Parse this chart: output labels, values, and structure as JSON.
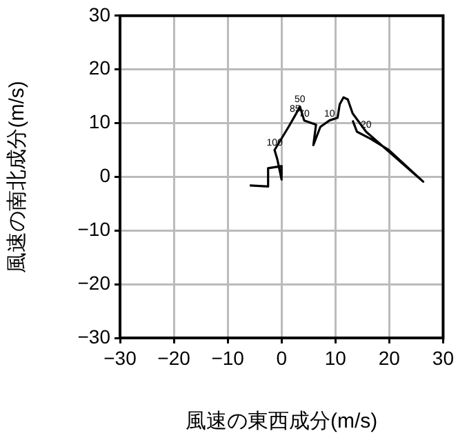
{
  "chart_data": {
    "type": "line",
    "xlabel": "風速の東西成分(m/s)",
    "ylabel": "風速の南北成分(m/s)",
    "xlim": [
      -30,
      30
    ],
    "xticks": [
      -30,
      -20,
      -10,
      0,
      10,
      20,
      30
    ],
    "ylim": [
      -30,
      30
    ],
    "yticks": [
      -30,
      -20,
      -10,
      0,
      10,
      20,
      30
    ],
    "grid": true,
    "legend": false,
    "marker": "none",
    "line_style": "solid",
    "series": [
      {
        "color": "#000000",
        "x": [
          -5.9,
          -2.5,
          -2.5,
          0,
          0,
          -0.8,
          -1.3,
          1.3,
          2.5,
          3.4,
          4.2,
          6.4,
          5.9,
          7.2,
          8.9,
          10.4,
          10.8,
          11.5,
          12.3,
          13.2,
          15.7,
          26.3,
          19.9,
          16.5,
          14,
          13.2
        ],
        "values": [
          -1.6,
          -1.8,
          1.6,
          2,
          -0.5,
          3.3,
          5,
          9.3,
          11.4,
          13.1,
          10.5,
          9.7,
          5.9,
          9.3,
          10.5,
          11,
          13.5,
          14.8,
          14.4,
          11.8,
          8.4,
          -0.9,
          5,
          7.1,
          8.4,
          10.5
        ]
      }
    ],
    "annotations": [
      {
        "text": "85",
        "x": 2.5,
        "y": 11.4
      },
      {
        "text": "50",
        "x": 3.4,
        "y": 13.1
      },
      {
        "text": "70",
        "x": 4.2,
        "y": 10.5
      },
      {
        "text": "100",
        "x": -1.3,
        "y": 5
      },
      {
        "text": "20",
        "x": 15.7,
        "y": 8.4
      },
      {
        "text": "10",
        "x": 8.9,
        "y": 10.5
      }
    ]
  }
}
